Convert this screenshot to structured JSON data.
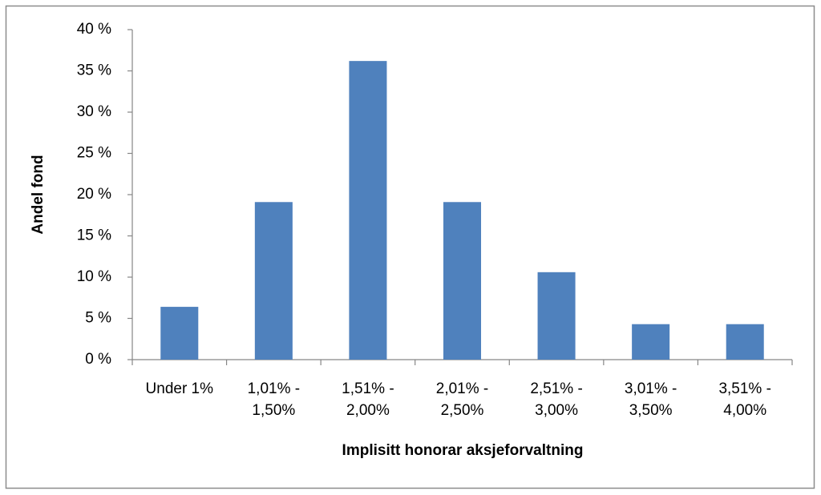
{
  "chart_data": {
    "type": "bar",
    "categories": [
      "Under 1%",
      "1,01% - 1,50%",
      "1,51% - 2,00%",
      "2,01% - 2,50%",
      "2,51% - 3,00%",
      "3,01% - 3,50%",
      "3,51% - 4,00%"
    ],
    "values": [
      6.4,
      19.1,
      36.2,
      19.1,
      10.6,
      4.3,
      4.3
    ],
    "color": "#4f81bd",
    "x_label": "Implisitt honorar aksjeforvaltning",
    "y_label": "Andel fond",
    "ylim": [
      0,
      40
    ],
    "yticks": [
      {
        "value": 0,
        "label": "0 %"
      },
      {
        "value": 5,
        "label": "5 %"
      },
      {
        "value": 10,
        "label": "10 %"
      },
      {
        "value": 15,
        "label": "15 %"
      },
      {
        "value": 20,
        "label": "20 %"
      },
      {
        "value": 25,
        "label": "25 %"
      },
      {
        "value": 30,
        "label": "30 %"
      },
      {
        "value": 35,
        "label": "35 %"
      },
      {
        "value": 40,
        "label": "40 %"
      }
    ],
    "grid": false
  }
}
